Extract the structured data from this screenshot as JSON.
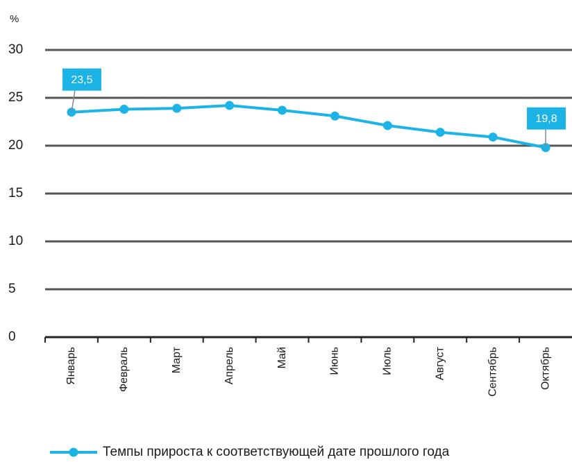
{
  "chart_data": {
    "type": "line",
    "y_label": "%",
    "categories": [
      "Январь",
      "Февраль",
      "Март",
      "Апрель",
      "Май",
      "Июнь",
      "Июль",
      "Август",
      "Сентябрь",
      "Октябрь"
    ],
    "series": [
      {
        "name": "Темпы прироста к соответствующей дате прошлого года",
        "color": "#1cb4e6",
        "values": [
          23.5,
          23.8,
          23.9,
          24.2,
          23.7,
          23.1,
          22.1,
          21.4,
          20.9,
          19.8
        ],
        "value_labels": [
          "23,5",
          null,
          null,
          null,
          null,
          null,
          null,
          null,
          null,
          "19,8"
        ]
      }
    ],
    "ylim": [
      0,
      30
    ],
    "yticks": [
      0,
      5,
      10,
      15,
      20,
      25,
      30
    ],
    "grid": true
  }
}
